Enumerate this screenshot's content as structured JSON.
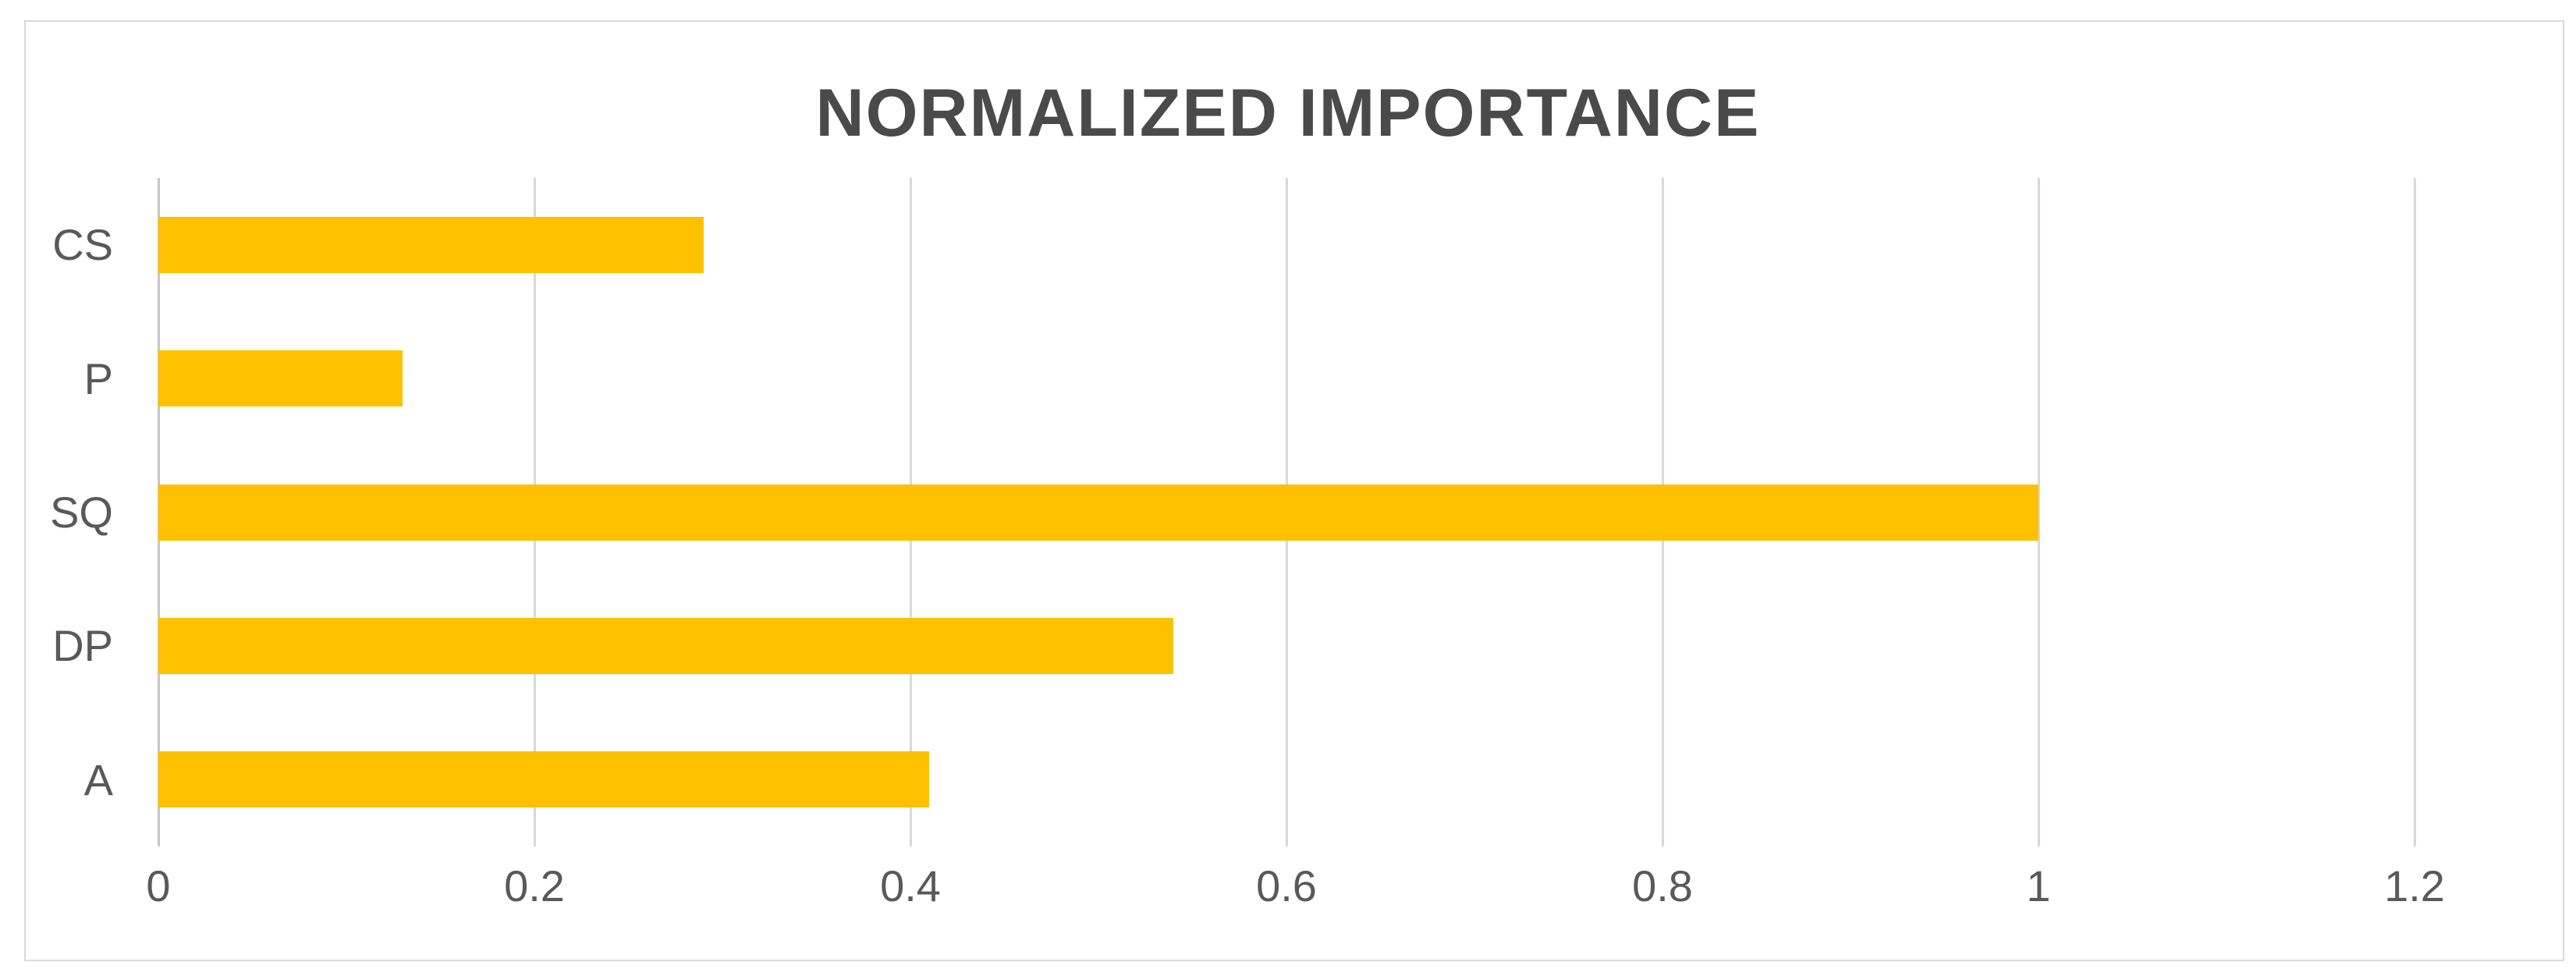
{
  "chart": {
    "title": "NORMALIZED IMPORTANCE"
  },
  "chart_data": {
    "type": "bar",
    "orientation": "horizontal",
    "title": "NORMALIZED IMPORTANCE",
    "xlabel": "",
    "ylabel": "",
    "categories": [
      "CS",
      "P",
      "SQ",
      "DP",
      "A"
    ],
    "values": [
      0.29,
      0.13,
      1.0,
      0.54,
      0.41
    ],
    "series": [
      {
        "name": "Normalized importance",
        "values": [
          0.29,
          0.13,
          1.0,
          0.54,
          0.41
        ]
      }
    ],
    "xlim": [
      0,
      1.2
    ],
    "x_ticks": [
      0,
      0.2,
      0.4,
      0.6,
      0.8,
      1,
      1.2
    ],
    "x_tick_labels": [
      "0",
      "0.2",
      "0.4",
      "0.6",
      "0.8",
      "1",
      "1.2"
    ],
    "grid": "vertical-gridlines-on",
    "legend": "none",
    "colors": {
      "bar": "#FFC000",
      "gridline": "#D9D9D9",
      "axis_line": "#C6C6C6",
      "tick_text": "#595959",
      "category_text": "#595959",
      "title_text": "#4A4A4A",
      "frame_border": "#D9D9D9",
      "background": "#FFFFFF"
    }
  }
}
